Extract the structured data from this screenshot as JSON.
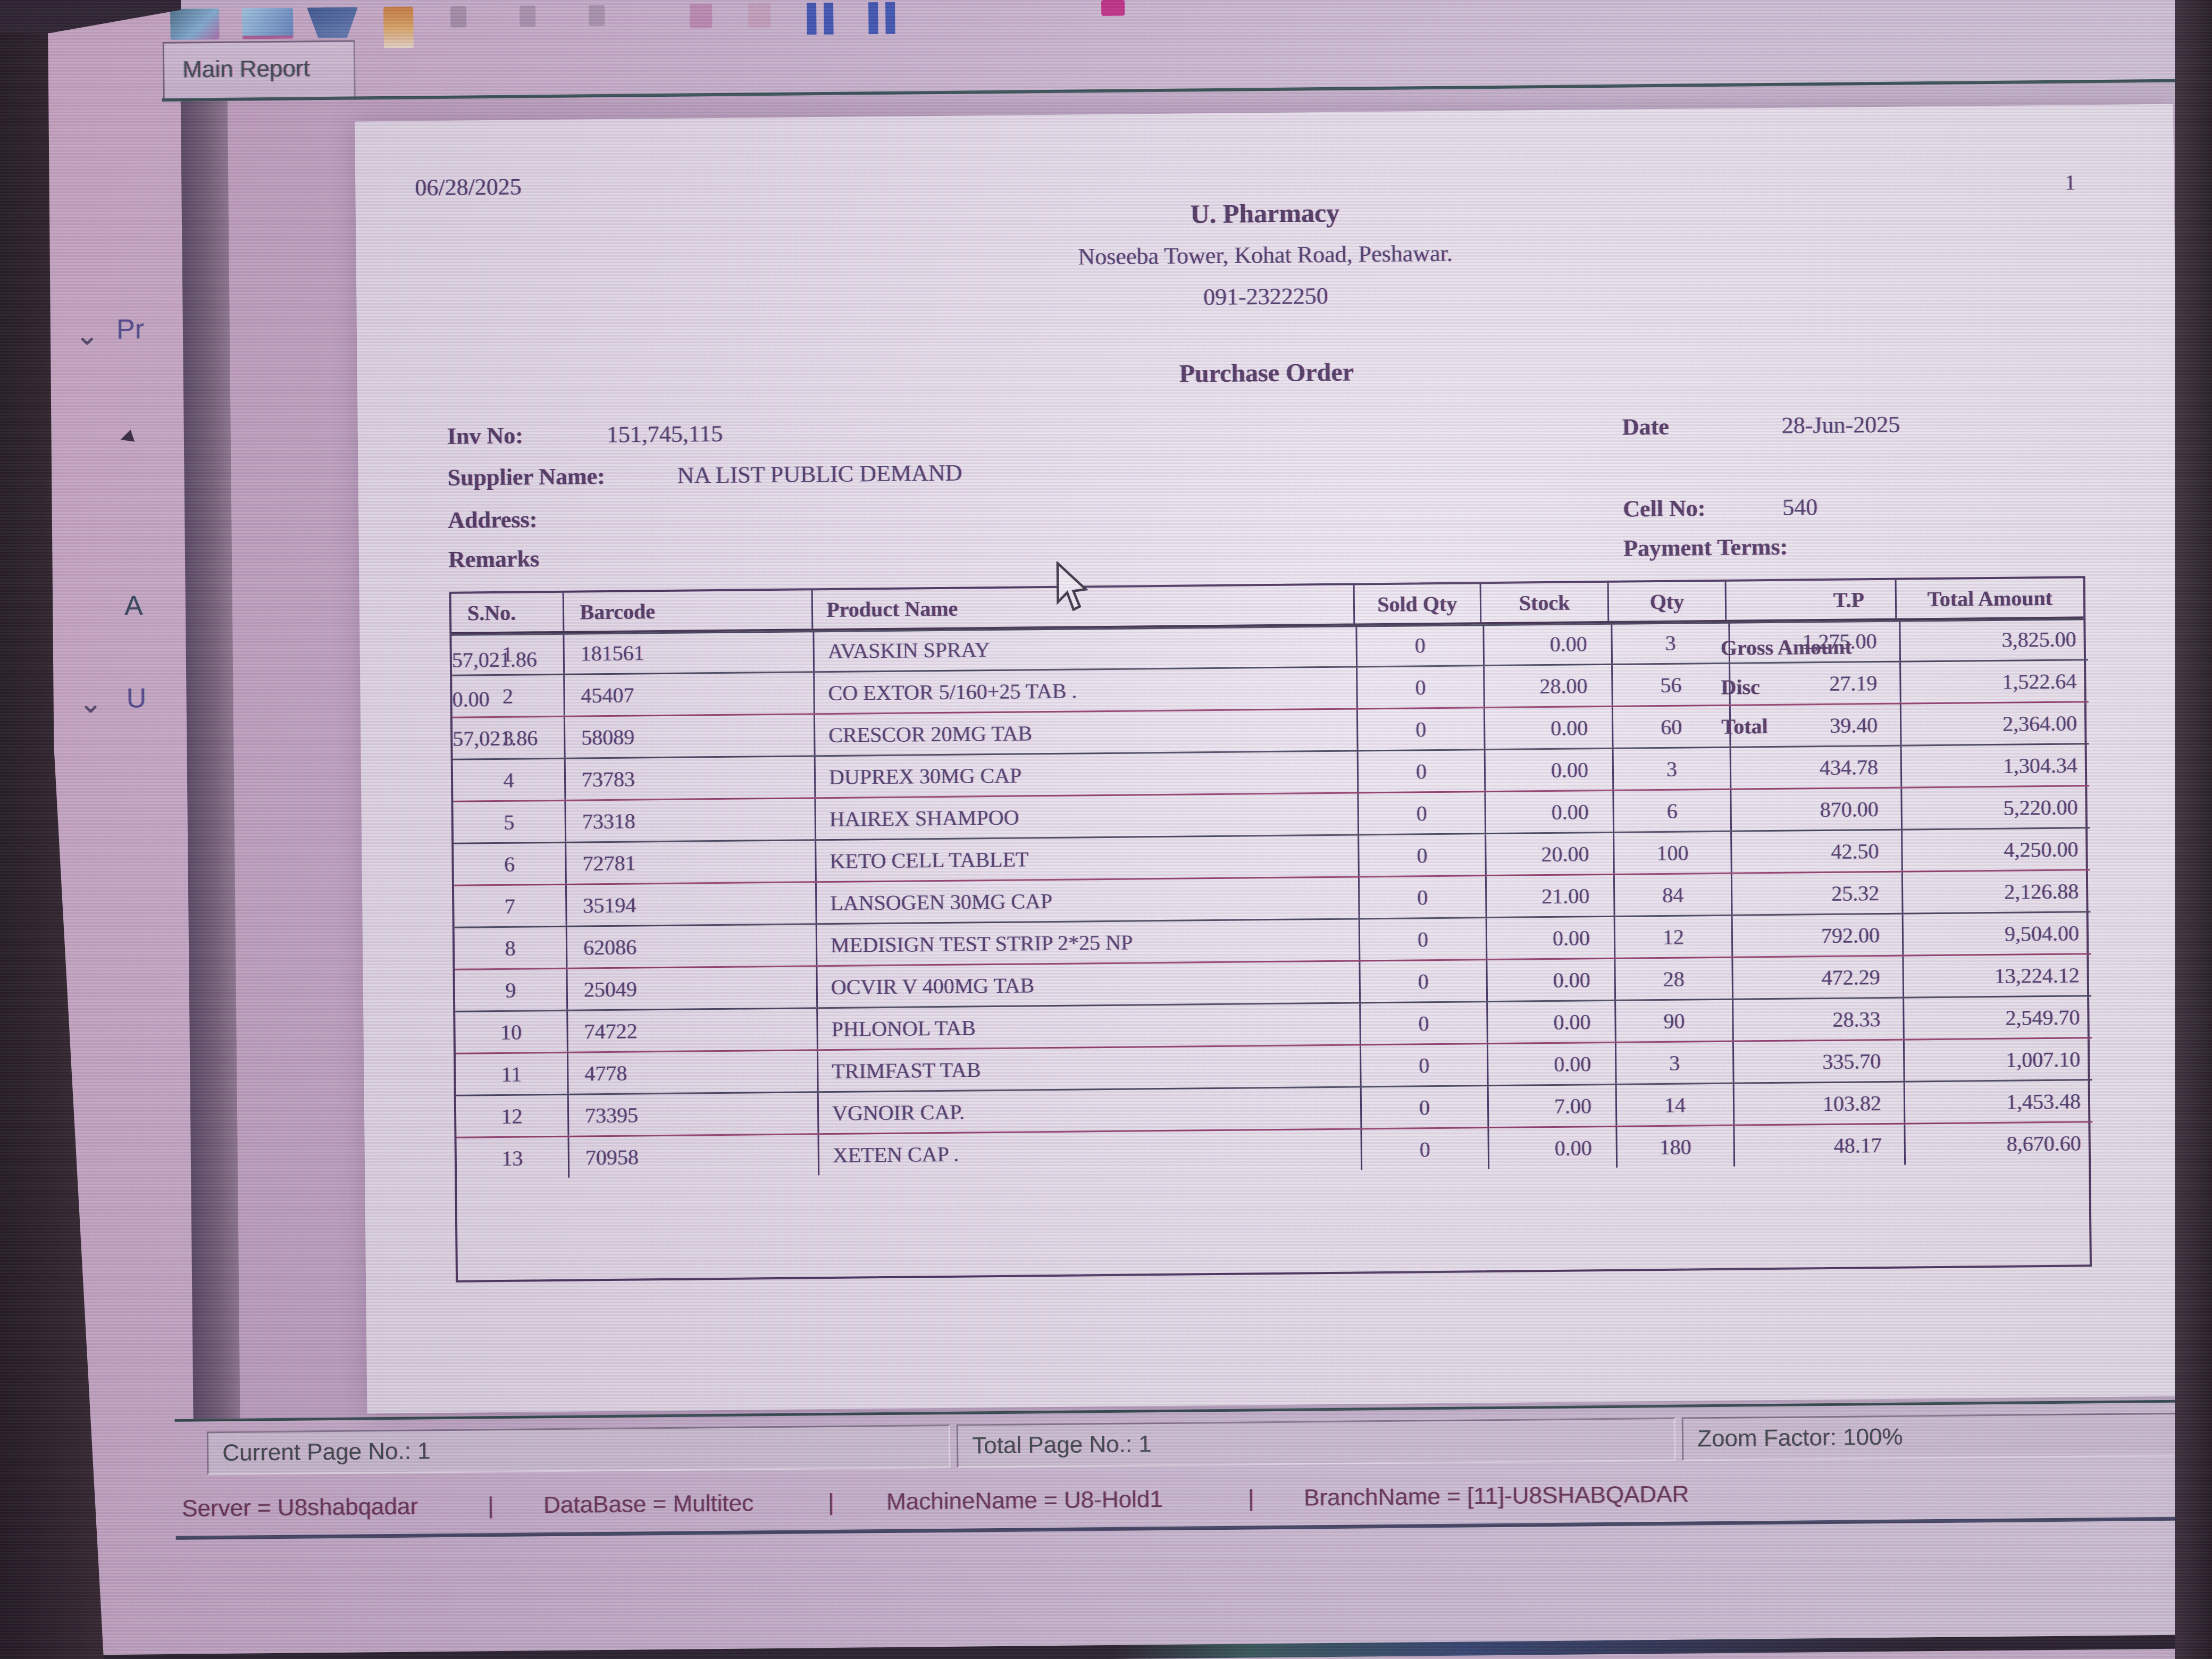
{
  "tab": {
    "label": "Main Report"
  },
  "report": {
    "print_date": "06/28/2025",
    "page_number": "1",
    "pharmacy_name": "U. Pharmacy",
    "address_line": "Noseeba Tower, Kohat Road, Peshawar.",
    "phone": "091-2322250",
    "title": "Purchase Order",
    "fields": {
      "inv_no_label": "Inv No:",
      "inv_no": "151,745,115",
      "supplier_label": "Supplier Name:",
      "supplier": "NA LIST PUBLIC DEMAND",
      "address_label": "Address:",
      "remarks_label": "Remarks",
      "date_label": "Date",
      "date": "28-Jun-2025",
      "cell_label": "Cell No:",
      "cell": "540",
      "payment_label": "Payment Terms:"
    },
    "table": {
      "headers": [
        "S.No.",
        "Barcode",
        "Product Name",
        "Sold Qty",
        "Stock",
        "Qty",
        "T.P",
        "Total Amount"
      ],
      "rows": [
        [
          "1",
          "181561",
          "AVASKIN SPRAY",
          "0",
          "0.00",
          "3",
          "1,275.00",
          "3,825.00"
        ],
        [
          "2",
          "45407",
          "CO EXTOR 5/160+25 TAB .",
          "0",
          "28.00",
          "56",
          "27.19",
          "1,522.64"
        ],
        [
          "3",
          "58089",
          "CRESCOR 20MG TAB",
          "0",
          "0.00",
          "60",
          "39.40",
          "2,364.00"
        ],
        [
          "4",
          "73783",
          "DUPREX 30MG CAP",
          "0",
          "0.00",
          "3",
          "434.78",
          "1,304.34"
        ],
        [
          "5",
          "73318",
          "HAIREX SHAMPOO",
          "0",
          "0.00",
          "6",
          "870.00",
          "5,220.00"
        ],
        [
          "6",
          "72781",
          "KETO CELL TABLET",
          "0",
          "20.00",
          "100",
          "42.50",
          "4,250.00"
        ],
        [
          "7",
          "35194",
          "LANSOGEN 30MG CAP",
          "0",
          "21.00",
          "84",
          "25.32",
          "2,126.88"
        ],
        [
          "8",
          "62086",
          "MEDISIGN TEST STRIP 2*25 NP",
          "0",
          "0.00",
          "12",
          "792.00",
          "9,504.00"
        ],
        [
          "9",
          "25049",
          "OCVIR V 400MG TAB",
          "0",
          "0.00",
          "28",
          "472.29",
          "13,224.12"
        ],
        [
          "10",
          "74722",
          "PHLONOL TAB",
          "0",
          "0.00",
          "90",
          "28.33",
          "2,549.70"
        ],
        [
          "11",
          "4778",
          "TRIMFAST TAB",
          "0",
          "0.00",
          "3",
          "335.70",
          "1,007.10"
        ],
        [
          "12",
          "73395",
          "VGNOIR CAP.",
          "0",
          "7.00",
          "14",
          "103.82",
          "1,453.48"
        ],
        [
          "13",
          "70958",
          "XETEN CAP .",
          "0",
          "0.00",
          "180",
          "48.17",
          "8,670.60"
        ]
      ],
      "totals": {
        "gross_label": "Gross Amount",
        "gross": "57,021.86",
        "disc_label": "Disc",
        "disc": "0.00",
        "total_label": "Total",
        "total": "57,021.86"
      }
    }
  },
  "status_bar": {
    "current_page": "Current Page No.: 1",
    "total_page": "Total Page No.: 1",
    "zoom": "Zoom Factor: 100%"
  },
  "server_bar": {
    "server": "Server = U8shabqadar",
    "sep1": "|",
    "database": "DataBase = Multitec",
    "sep2": "|",
    "machine": "MachineName = U8-Hold1",
    "sep3": "|",
    "branch": "BranchName = [11]-U8SHABQADAR"
  },
  "side_fragments": {
    "chevron": "⌄",
    "pr": "Pr",
    "a": "A",
    "u": "U",
    "arrow": "◄"
  },
  "colors": {
    "accent_magenta": "#8c2e5e",
    "border_purple": "#3a2450",
    "teal_line": "#254644"
  }
}
